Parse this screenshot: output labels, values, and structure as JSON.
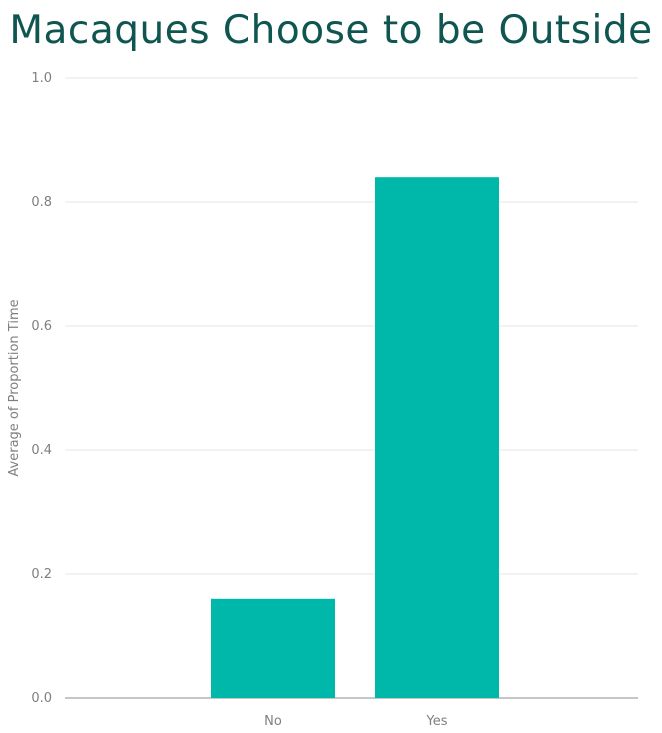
{
  "chart_data": {
    "type": "bar",
    "title": "Macaques Choose to be Outside",
    "xlabel": "",
    "ylabel": "Average of Proportion Time",
    "categories": [
      "No",
      "Yes"
    ],
    "values": [
      0.16,
      0.84
    ],
    "ylim": [
      0,
      1.0
    ],
    "yticks": [
      0.0,
      0.2,
      0.4,
      0.6,
      0.8,
      1.0
    ],
    "ytick_labels": [
      "0.0",
      "0.2",
      "0.4",
      "0.6",
      "0.8",
      "1.0"
    ],
    "grid": true,
    "legend": "none",
    "bar_color": "#00b8a9"
  }
}
